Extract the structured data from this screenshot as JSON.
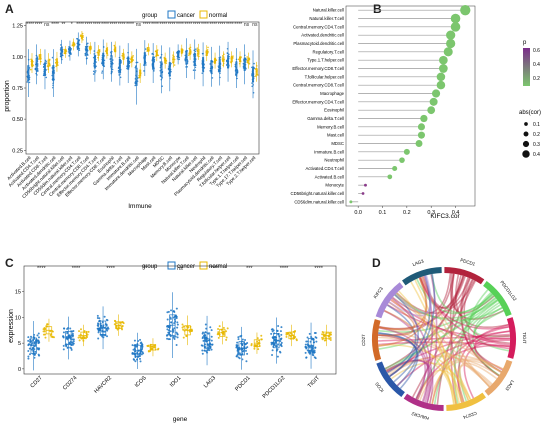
{
  "panels": {
    "A": "A",
    "B": "B",
    "C": "C",
    "D": "D"
  },
  "colors": {
    "cancer": "#1f77c4",
    "normal": "#e8b800",
    "lollipop_line": "#9a9a9a",
    "point_green": "#7cc66e",
    "point_purple": "#8a3c8a",
    "p_low": "#7cc66e",
    "p_high": "#7b2d8a"
  },
  "chart_data": [
    {
      "panel": "A",
      "type": "box",
      "legend_title": "group",
      "legend": [
        "cancer",
        "normal"
      ],
      "xlabel": "Immune",
      "ylabel": "proportion",
      "ylim": [
        0.22,
        1.28
      ],
      "yticks": [
        "0.25",
        "0.50",
        "0.75",
        "1.00",
        "1.25"
      ],
      "categories": [
        "Activated.B.cell",
        "Activated.CD4.T.cell",
        "Activated.CD8.T.cell",
        "Activated.dendritic.cell",
        "CD56bright.natural.killer.cell",
        "CD56dim.natural.killer.cell",
        "Central.memory.CD4.T.cell",
        "Central.memory.CD8.T.cell",
        "Effector.memory.CD4.T.cell",
        "Effector.memory.CD8.T.cell",
        "Eosinophil",
        "Gamma.delta.T.cell",
        "Immature.B.cell",
        "Immature.dendritic.cell",
        "Macrophage",
        "Mast.cell",
        "MDSC",
        "Memory.B.cell",
        "Monocyte",
        "Natural.killer.T.cell",
        "Natural.killer.cell",
        "Neutrophil",
        "Plasmacytoid.dendritic.cell",
        "Regulatory.T.cell",
        "T.follicular.helper.cell",
        "Type.1.T.helper.cell",
        "Type.17.T.helper.cell",
        "Type.2.T.helper.cell"
      ],
      "significance": [
        "****",
        "****",
        "ns",
        "****",
        "**",
        "*",
        "****",
        "****",
        "****",
        "****",
        "****",
        "****",
        "****",
        "ns",
        "****",
        "****",
        "****",
        "****",
        "****",
        "****",
        "****",
        "****",
        "****",
        "****",
        "****",
        "****",
        "ns",
        "ns"
      ],
      "series": [
        {
          "name": "cancer",
          "median": [
            0.87,
            0.94,
            0.9,
            0.87,
            1.04,
            1.05,
            1.1,
            1.05,
            0.96,
            0.98,
            0.96,
            0.93,
            0.95,
            0.84,
            0.99,
            0.95,
            0.9,
            0.9,
            1.02,
            0.99,
            0.98,
            0.94,
            0.92,
            0.93,
            0.96,
            0.91,
            0.94,
            0.86
          ],
          "spread": [
            0.12,
            0.1,
            0.1,
            0.12,
            0.06,
            0.05,
            0.06,
            0.07,
            0.1,
            0.1,
            0.1,
            0.1,
            0.1,
            0.14,
            0.09,
            0.1,
            0.12,
            0.11,
            0.05,
            0.1,
            0.1,
            0.11,
            0.1,
            0.1,
            0.1,
            0.1,
            0.1,
            0.12
          ]
        },
        {
          "name": "normal",
          "median": [
            0.95,
            1.0,
            0.95,
            0.96,
            1.04,
            1.1,
            1.16,
            1.07,
            1.03,
            1.05,
            1.06,
            1.0,
            0.98,
            0.87,
            1.06,
            1.03,
            0.97,
            0.98,
            1.05,
            1.04,
            1.04,
            1.03,
            0.97,
            0.98,
            0.98,
            0.98,
            0.97,
            0.88
          ],
          "spread": [
            0.05,
            0.04,
            0.05,
            0.05,
            0.03,
            0.03,
            0.03,
            0.03,
            0.04,
            0.04,
            0.04,
            0.04,
            0.04,
            0.05,
            0.03,
            0.04,
            0.04,
            0.04,
            0.03,
            0.04,
            0.04,
            0.04,
            0.04,
            0.04,
            0.04,
            0.04,
            0.04,
            0.05
          ]
        }
      ]
    },
    {
      "panel": "B",
      "type": "lollipop",
      "xlabel": "KIFC3.cor",
      "xlim": [
        -0.05,
        0.48
      ],
      "xticks": [
        "0.0",
        "0.1",
        "0.2",
        "0.3",
        "0.4"
      ],
      "xtick_values": [
        0.0,
        0.1,
        0.2,
        0.3,
        0.4
      ],
      "legend_p_title": "p",
      "legend_p_ticks": [
        "0.6",
        "0.4",
        "0.2"
      ],
      "legend_size_title": "abs(cor)",
      "legend_size_values": [
        "0.1",
        "0.2",
        "0.3",
        "0.4"
      ],
      "categories": [
        "Natural.killer.cell",
        "Natural.killer.T.cell",
        "Central.memory.CD4.T.cell",
        "Activated.dendritic.cell",
        "Plasmacytoid.dendritic.cell",
        "Regulatory.T.cell",
        "Type.1.T.helper.cell",
        "Effector.memory.CD8.T.cell",
        "T.follicular.helper.cell",
        "Central.memory.CD8.T.cell",
        "Macrophage",
        "Effector.memory.CD4.T.cell",
        "Eosinophil",
        "Gamma.delta.T.cell",
        "Memory.B.cell",
        "Mast.cell",
        "MDSC",
        "Immature.B.cell",
        "Neutrophil",
        "Activated.CD4.T.cell",
        "Activated.B.cell",
        "Monocyte",
        "CD56bright.natural.killer.cell",
        "CD56dim.natural.killer.cell"
      ],
      "values": [
        0.44,
        0.4,
        0.4,
        0.38,
        0.38,
        0.37,
        0.35,
        0.35,
        0.34,
        0.34,
        0.32,
        0.31,
        0.3,
        0.27,
        0.26,
        0.26,
        0.25,
        0.2,
        0.18,
        0.15,
        0.13,
        0.03,
        0.02,
        -0.03
      ],
      "p_high": [
        false,
        false,
        false,
        false,
        false,
        false,
        false,
        false,
        false,
        false,
        false,
        false,
        false,
        false,
        false,
        false,
        false,
        false,
        false,
        false,
        false,
        true,
        true,
        false
      ]
    },
    {
      "panel": "C",
      "type": "box",
      "legend_title": "group",
      "legend": [
        "cancer",
        "normal"
      ],
      "xlabel": "gene",
      "ylabel": "expression",
      "ylim": [
        -1,
        20
      ],
      "yticks": [
        "0",
        "5",
        "10",
        "15"
      ],
      "ytick_values": [
        0,
        5,
        10,
        15
      ],
      "categories": [
        "CD27",
        "CD274",
        "HAVCR2",
        "ICOS",
        "IDO1",
        "LAG3",
        "PDCD1",
        "PDCD1LG2",
        "TIGIT"
      ],
      "significance": [
        "****",
        "****",
        "****",
        "**",
        "ns",
        "****",
        "***",
        "****",
        "****"
      ],
      "series": [
        {
          "name": "cancer",
          "median": [
            4.5,
            6.0,
            8.0,
            3.5,
            8.5,
            5.5,
            4.0,
            5.5,
            4.5
          ],
          "spread": [
            3.0,
            2.6,
            2.6,
            2.2,
            4.0,
            3.0,
            2.6,
            2.8,
            2.8
          ]
        },
        {
          "name": "normal",
          "median": [
            7.5,
            6.5,
            8.5,
            4.2,
            7.5,
            7.0,
            5.0,
            6.5,
            6.5
          ],
          "spread": [
            1.4,
            1.3,
            1.3,
            1.1,
            1.8,
            1.4,
            1.3,
            1.3,
            1.3
          ]
        }
      ]
    },
    {
      "panel": "D",
      "type": "chord",
      "genes": [
        {
          "label": "PDCD1",
          "color": "#b2223c"
        },
        {
          "label": "PDCD1LG2",
          "color": "#57d157"
        },
        {
          "label": "TIGIT",
          "color": "#d41c5c"
        },
        {
          "label": "LAG3",
          "color": "#e8a86c"
        },
        {
          "label": "CD274",
          "color": "#f0c040"
        },
        {
          "label": "HAVCR2",
          "color": "#b03088"
        },
        {
          "label": "ICOS",
          "color": "#2a57a8"
        },
        {
          "label": "CD27",
          "color": "#d26a28"
        },
        {
          "label": "KIFC3",
          "color": "#a88ad8"
        },
        {
          "label": "LAG3",
          "color": "#1f5a78"
        }
      ]
    }
  ]
}
